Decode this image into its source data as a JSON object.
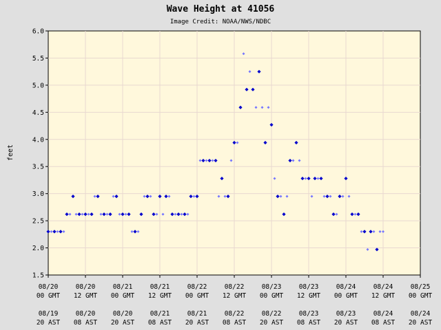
{
  "chart_data": {
    "type": "scatter",
    "title": "Wave Height at 41056",
    "subtitle": "Image Credit: NOAA/NWS/NDBC",
    "ylabel": "feet",
    "ylim": [
      1.5,
      6.0
    ],
    "yticks": [
      "1.5",
      "2.0",
      "2.5",
      "3.0",
      "3.5",
      "4.0",
      "4.5",
      "5.0",
      "5.5",
      "6.0"
    ],
    "xlim_hours": [
      0,
      120
    ],
    "xticks": [
      {
        "gmt_date": "08/20",
        "gmt_time": "00 GMT",
        "ast_date": "08/19",
        "ast_time": "20 AST"
      },
      {
        "gmt_date": "08/20",
        "gmt_time": "12 GMT",
        "ast_date": "08/20",
        "ast_time": "08 AST"
      },
      {
        "gmt_date": "08/21",
        "gmt_time": "00 GMT",
        "ast_date": "08/20",
        "ast_time": "20 AST"
      },
      {
        "gmt_date": "08/21",
        "gmt_time": "12 GMT",
        "ast_date": "08/21",
        "ast_time": "08 AST"
      },
      {
        "gmt_date": "08/22",
        "gmt_time": "00 GMT",
        "ast_date": "08/21",
        "ast_time": "20 AST"
      },
      {
        "gmt_date": "08/22",
        "gmt_time": "12 GMT",
        "ast_date": "08/22",
        "ast_time": "08 AST"
      },
      {
        "gmt_date": "08/23",
        "gmt_time": "00 GMT",
        "ast_date": "08/22",
        "ast_time": "20 AST"
      },
      {
        "gmt_date": "08/23",
        "gmt_time": "12 GMT",
        "ast_date": "08/23",
        "ast_time": "08 AST"
      },
      {
        "gmt_date": "08/24",
        "gmt_time": "00 GMT",
        "ast_date": "08/23",
        "ast_time": "20 AST"
      },
      {
        "gmt_date": "08/24",
        "gmt_time": "12 GMT",
        "ast_date": "08/24",
        "ast_time": "08 AST"
      },
      {
        "gmt_date": "08/25",
        "gmt_time": "00 GMT",
        "ast_date": "08/24",
        "ast_time": "20 AST"
      }
    ],
    "grid": true,
    "colors": {
      "background": "#e0e0e0",
      "plot": "#fff8dc",
      "grid": "#e8d8d0",
      "point_light": "#7777ff",
      "point_dark": "#0000cc"
    },
    "points": [
      [
        0,
        2.3,
        1
      ],
      [
        1,
        2.3,
        0
      ],
      [
        2,
        2.3,
        1
      ],
      [
        3,
        2.3,
        0
      ],
      [
        4,
        2.3,
        1
      ],
      [
        5,
        2.3,
        0
      ],
      [
        6,
        2.62,
        1
      ],
      [
        7,
        2.62,
        0
      ],
      [
        8,
        2.95,
        1
      ],
      [
        9,
        2.62,
        0
      ],
      [
        10,
        2.62,
        1
      ],
      [
        11,
        2.62,
        0
      ],
      [
        12,
        2.62,
        1
      ],
      [
        13,
        2.62,
        0
      ],
      [
        14,
        2.62,
        1
      ],
      [
        15,
        2.95,
        0
      ],
      [
        16,
        2.95,
        1
      ],
      [
        17,
        2.62,
        0
      ],
      [
        18,
        2.62,
        1
      ],
      [
        19,
        2.62,
        0
      ],
      [
        20,
        2.62,
        1
      ],
      [
        21,
        2.95,
        0
      ],
      [
        22,
        2.95,
        1
      ],
      [
        23,
        2.62,
        0
      ],
      [
        24,
        2.62,
        1
      ],
      [
        25,
        2.62,
        0
      ],
      [
        26,
        2.62,
        1
      ],
      [
        27,
        2.3,
        0
      ],
      [
        28,
        2.3,
        1
      ],
      [
        29,
        2.3,
        0
      ],
      [
        30,
        2.62,
        1
      ],
      [
        31,
        2.95,
        0
      ],
      [
        32,
        2.95,
        1
      ],
      [
        33,
        2.95,
        0
      ],
      [
        34,
        2.62,
        1
      ],
      [
        35,
        2.62,
        0
      ],
      [
        36,
        2.95,
        1
      ],
      [
        37,
        2.62,
        0
      ],
      [
        38,
        2.95,
        1
      ],
      [
        39,
        2.95,
        0
      ],
      [
        40,
        2.62,
        1
      ],
      [
        41,
        2.62,
        0
      ],
      [
        42,
        2.62,
        1
      ],
      [
        43,
        2.62,
        0
      ],
      [
        44,
        2.62,
        1
      ],
      [
        45,
        2.62,
        0
      ],
      [
        46,
        2.95,
        1
      ],
      [
        47,
        2.95,
        0
      ],
      [
        48,
        2.95,
        1
      ],
      [
        49,
        3.61,
        0
      ],
      [
        50,
        3.61,
        1
      ],
      [
        51,
        3.61,
        0
      ],
      [
        52,
        3.61,
        1
      ],
      [
        53,
        3.61,
        0
      ],
      [
        54,
        3.61,
        1
      ],
      [
        55,
        2.95,
        0
      ],
      [
        56,
        3.28,
        1
      ],
      [
        57,
        2.95,
        0
      ],
      [
        58,
        2.95,
        1
      ],
      [
        59,
        3.61,
        0
      ],
      [
        60,
        3.94,
        1
      ],
      [
        61,
        3.94,
        0
      ],
      [
        62,
        4.59,
        1
      ],
      [
        63,
        5.58,
        0
      ],
      [
        64,
        4.92,
        1
      ],
      [
        65,
        5.25,
        0
      ],
      [
        66,
        4.92,
        1
      ],
      [
        67,
        4.59,
        0
      ],
      [
        68,
        5.25,
        1
      ],
      [
        69,
        4.59,
        0
      ],
      [
        70,
        3.94,
        1
      ],
      [
        71,
        4.59,
        0
      ],
      [
        72,
        4.27,
        1
      ],
      [
        73,
        3.28,
        0
      ],
      [
        74,
        2.95,
        1
      ],
      [
        75,
        2.95,
        0
      ],
      [
        76,
        2.62,
        1
      ],
      [
        77,
        2.95,
        0
      ],
      [
        78,
        3.61,
        1
      ],
      [
        79,
        3.61,
        0
      ],
      [
        80,
        3.94,
        1
      ],
      [
        81,
        3.61,
        0
      ],
      [
        82,
        3.28,
        1
      ],
      [
        83,
        3.28,
        0
      ],
      [
        84,
        3.28,
        1
      ],
      [
        85,
        2.95,
        0
      ],
      [
        86,
        3.28,
        1
      ],
      [
        87,
        3.28,
        0
      ],
      [
        88,
        3.28,
        1
      ],
      [
        89,
        2.95,
        0
      ],
      [
        90,
        2.95,
        1
      ],
      [
        91,
        2.95,
        0
      ],
      [
        92,
        2.62,
        1
      ],
      [
        93,
        2.62,
        0
      ],
      [
        94,
        2.95,
        1
      ],
      [
        95,
        2.95,
        0
      ],
      [
        96,
        3.28,
        1
      ],
      [
        97,
        2.95,
        0
      ],
      [
        98,
        2.62,
        1
      ],
      [
        99,
        2.62,
        0
      ],
      [
        100,
        2.62,
        1
      ],
      [
        101,
        2.3,
        0
      ],
      [
        102,
        2.3,
        1
      ],
      [
        103,
        1.97,
        0
      ],
      [
        104,
        2.3,
        1
      ],
      [
        105,
        2.3,
        0
      ],
      [
        106,
        1.97,
        1
      ],
      [
        107,
        2.3,
        0
      ],
      [
        108,
        2.3,
        0
      ]
    ]
  }
}
